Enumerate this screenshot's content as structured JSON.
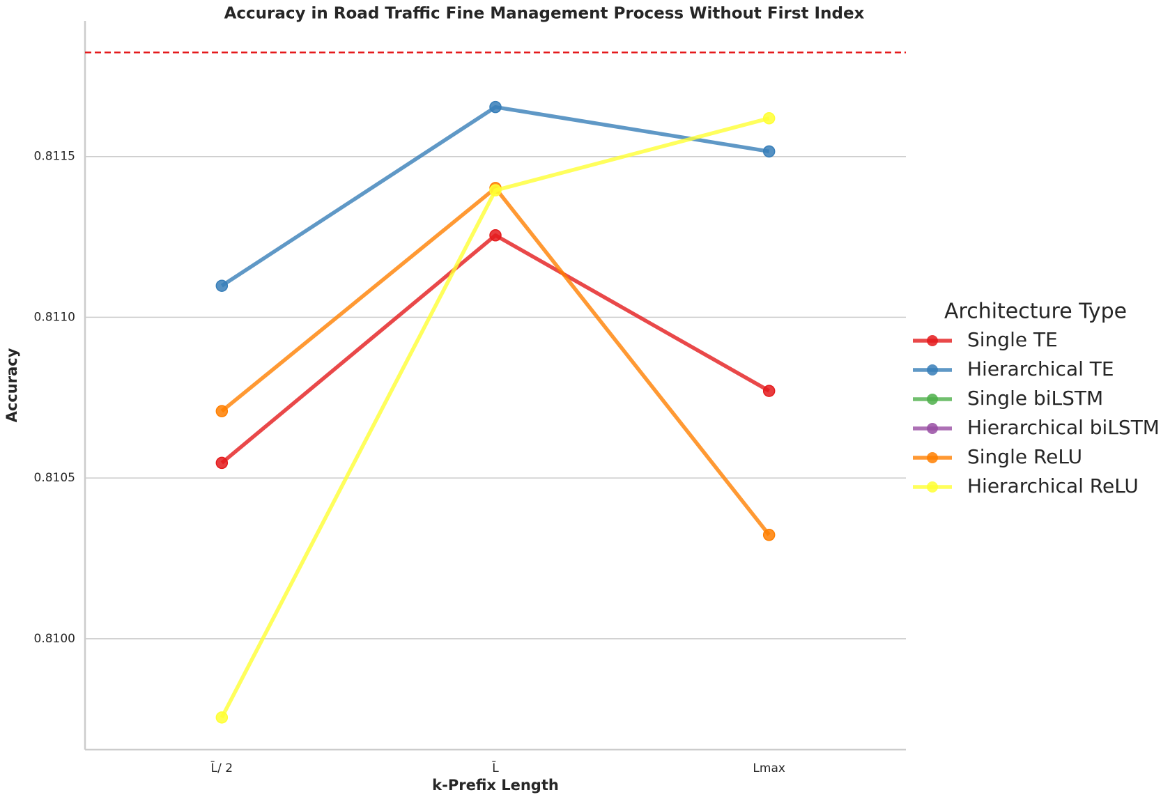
{
  "chart_data": {
    "type": "line",
    "title": "Accuracy in Road Traffic Fine Management Process Without First Index",
    "x_label": "k-Prefix Length",
    "y_label": "Accuracy",
    "categories": [
      "L̄/ 2",
      "L̄",
      "Lmax"
    ],
    "series": [
      {
        "name": "Single TE",
        "color": "#e41a1c",
        "values": [
          0.810547,
          0.811255,
          0.810771
        ]
      },
      {
        "name": "Hierarchical TE",
        "color": "#377eb8",
        "values": [
          0.811098,
          0.811654,
          0.811516
        ]
      },
      {
        "name": "Single biLSTM",
        "color": "#4daf4a",
        "values": [
          null,
          null,
          null
        ]
      },
      {
        "name": "Hierarchical biLSTM",
        "color": "#984ea3",
        "values": [
          null,
          null,
          null
        ]
      },
      {
        "name": "Single ReLU",
        "color": "#ff7f00",
        "values": [
          0.810708,
          0.811402,
          0.810323
        ]
      },
      {
        "name": "Hierarchical ReLU",
        "color": "#ffff33",
        "values": [
          0.809755,
          0.811395,
          0.811619
        ]
      }
    ],
    "reference_line": {
      "value": 0.811824,
      "color": "#e41a1c"
    },
    "ylim": [
      0.809655,
      0.811922
    ],
    "yticks": [
      {
        "value": 0.81,
        "label": "0.8100"
      },
      {
        "value": 0.8105,
        "label": "0.8105"
      },
      {
        "value": 0.811,
        "label": "0.8110"
      },
      {
        "value": 0.8115,
        "label": "0.8115"
      }
    ],
    "grid": true,
    "legend": {
      "title": "Architecture Type",
      "position": "center right outside"
    }
  }
}
